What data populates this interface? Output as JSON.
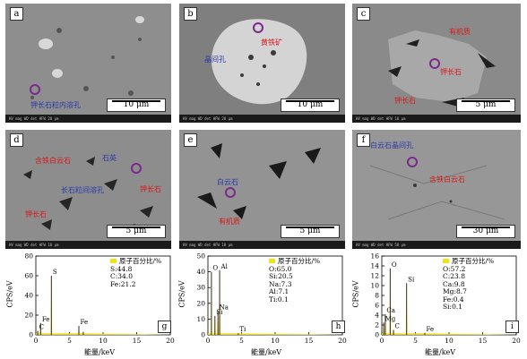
{
  "panels": [
    {
      "id": "a",
      "label": "a",
      "scale": "10 μm",
      "info": "HV  mag  WD  det  HFW  20 μm"
    },
    {
      "id": "b",
      "label": "b",
      "scale": "10 μm",
      "info": "HV  mag  WD  det  HFW  20 μm"
    },
    {
      "id": "c",
      "label": "c",
      "scale": "5 μm",
      "info": "HV  mag  WD  det  HFW  10 μm"
    },
    {
      "id": "d",
      "label": "d",
      "scale": "5 μm",
      "info": "HV  mag  WD  det  HFW  10 μm"
    },
    {
      "id": "e",
      "label": "e",
      "scale": "5 μm",
      "info": "HV  mag  WD  det  HFW  10 μm"
    },
    {
      "id": "f",
      "label": "f",
      "scale": "30 μm",
      "info": "HV  mag  WD  det  HFW  50 μm"
    }
  ],
  "annotations": {
    "a_1": "钾长石粒内溶孔",
    "b_1": "黄铁矿",
    "b_2": "晶间孔",
    "c_1": "有机质",
    "c_2": "钾长石",
    "c_3": "钾长石",
    "d_1": "含铁白云石",
    "d_2": "石英",
    "d_3": "长石粒间溶孔",
    "d_4": "钾长石",
    "d_5": "钾长石",
    "e_1": "白云石",
    "e_2": "有机质",
    "f_1": "白云石晶间孔",
    "f_2": "含铁白云石"
  },
  "eds": [
    {
      "id": "g",
      "tag": "g",
      "ylabel": "CPS/eV",
      "xlabel": "能量/keV",
      "legend_title": "原子百分比/%",
      "composition": [
        "S:44.8",
        "C:34.0",
        "Fe:21.2"
      ],
      "peak_labels": [
        "C",
        "S",
        "Fe",
        "Fe"
      ]
    },
    {
      "id": "h",
      "tag": "h",
      "ylabel": "CPS/eV",
      "xlabel": "能量/keV",
      "legend_title": "原子百分比/%",
      "composition": [
        "O:65.0",
        "Si:20.5",
        "Na:7.3",
        "Al:7.1",
        "Ti:0.1"
      ],
      "peak_labels": [
        "O",
        "Si",
        "Na",
        "Al",
        "Ti"
      ]
    },
    {
      "id": "i",
      "tag": "i",
      "ylabel": "CPS/eV",
      "xlabel": "能量/keV",
      "legend_title": "原子百分比/%",
      "composition": [
        "O:57.2",
        "C:23.8",
        "Ca:9.8",
        "Mg:8.7",
        "Fe:0.4",
        "Si:0.1"
      ],
      "peak_labels": [
        "Mg",
        "Ca",
        "O",
        "C",
        "Si",
        "Fe"
      ]
    }
  ],
  "chart_data": [
    {
      "type": "line",
      "title": "g",
      "xlabel": "能量/keV",
      "ylabel": "CPS/eV",
      "xlim": [
        0,
        20
      ],
      "ylim": [
        0,
        80
      ],
      "xticks": [
        0,
        5,
        10,
        15,
        20
      ],
      "yticks": [
        0,
        20,
        40,
        60,
        80
      ],
      "series": [
        {
          "name": "spectrum",
          "x": [
            0.28,
            2.31,
            0.71,
            6.4,
            7.06
          ],
          "y": [
            4,
            60,
            12,
            9,
            3
          ]
        }
      ]
    },
    {
      "type": "line",
      "title": "h",
      "xlabel": "能量/keV",
      "ylabel": "CPS/eV",
      "xlim": [
        0,
        20
      ],
      "ylim": [
        0,
        50
      ],
      "xticks": [
        0,
        5,
        10,
        15,
        20
      ],
      "yticks": [
        0,
        10,
        20,
        30,
        40,
        50
      ],
      "series": [
        {
          "name": "spectrum",
          "x": [
            0.52,
            1.04,
            1.49,
            1.74,
            4.51
          ],
          "y": [
            40,
            12,
            15,
            41,
            1
          ]
        }
      ]
    },
    {
      "type": "line",
      "title": "i",
      "xlabel": "能量/keV",
      "ylabel": "CPS/eV",
      "xlim": [
        0,
        20
      ],
      "ylim": [
        0,
        16
      ],
      "xticks": [
        0,
        5,
        10,
        15,
        20
      ],
      "yticks": [
        0,
        2,
        4,
        6,
        8,
        10,
        12,
        14,
        16
      ],
      "series": [
        {
          "name": "spectrum",
          "x": [
            0.28,
            0.52,
            1.25,
            1.74,
            3.69,
            6.4
          ],
          "y": [
            2.5,
            4.2,
            13.5,
            1.0,
            10.5,
            0.4
          ]
        }
      ]
    }
  ]
}
